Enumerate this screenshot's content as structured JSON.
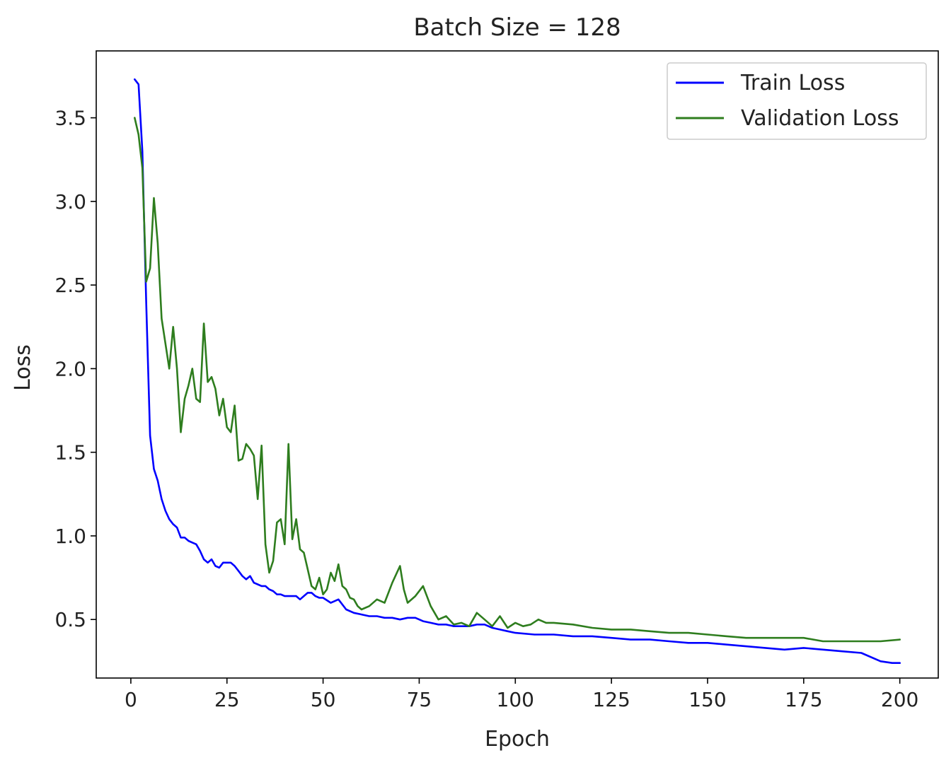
{
  "chart_data": {
    "type": "line",
    "title": "Batch Size = 128",
    "xlabel": "Epoch",
    "ylabel": "Loss",
    "xlim": [
      -9,
      210
    ],
    "ylim": [
      0.15,
      3.9
    ],
    "xticks": [
      0,
      25,
      50,
      75,
      100,
      125,
      150,
      175,
      200
    ],
    "yticks": [
      0.5,
      1.0,
      1.5,
      2.0,
      2.5,
      3.0,
      3.5
    ],
    "grid": false,
    "legend_position": "upper right",
    "series": [
      {
        "name": "Train Loss",
        "color": "#0000ff",
        "x": [
          1,
          2,
          3,
          4,
          5,
          6,
          7,
          8,
          9,
          10,
          11,
          12,
          13,
          14,
          15,
          16,
          17,
          18,
          19,
          20,
          21,
          22,
          23,
          24,
          25,
          26,
          27,
          28,
          29,
          30,
          31,
          32,
          33,
          34,
          35,
          36,
          37,
          38,
          39,
          40,
          41,
          42,
          43,
          44,
          45,
          46,
          47,
          48,
          49,
          50,
          52,
          54,
          56,
          58,
          60,
          62,
          64,
          66,
          68,
          70,
          72,
          74,
          76,
          78,
          80,
          82,
          84,
          86,
          88,
          90,
          92,
          94,
          96,
          98,
          100,
          105,
          110,
          115,
          120,
          125,
          130,
          135,
          140,
          145,
          150,
          155,
          160,
          165,
          170,
          175,
          180,
          185,
          190,
          195,
          198,
          200
        ],
        "y": [
          3.73,
          3.7,
          3.3,
          2.4,
          1.6,
          1.4,
          1.33,
          1.22,
          1.15,
          1.1,
          1.07,
          1.05,
          0.99,
          0.99,
          0.97,
          0.96,
          0.95,
          0.91,
          0.86,
          0.84,
          0.86,
          0.82,
          0.81,
          0.84,
          0.84,
          0.84,
          0.82,
          0.79,
          0.76,
          0.74,
          0.76,
          0.72,
          0.71,
          0.7,
          0.7,
          0.68,
          0.67,
          0.65,
          0.65,
          0.64,
          0.64,
          0.64,
          0.64,
          0.62,
          0.64,
          0.66,
          0.66,
          0.64,
          0.63,
          0.63,
          0.6,
          0.62,
          0.56,
          0.54,
          0.53,
          0.52,
          0.52,
          0.51,
          0.51,
          0.5,
          0.51,
          0.51,
          0.49,
          0.48,
          0.47,
          0.47,
          0.46,
          0.46,
          0.46,
          0.47,
          0.47,
          0.45,
          0.44,
          0.43,
          0.42,
          0.41,
          0.41,
          0.4,
          0.4,
          0.39,
          0.38,
          0.38,
          0.37,
          0.36,
          0.36,
          0.35,
          0.34,
          0.33,
          0.32,
          0.33,
          0.32,
          0.31,
          0.3,
          0.25,
          0.24,
          0.24
        ]
      },
      {
        "name": "Validation Loss",
        "color": "#2e7d1e",
        "x": [
          1,
          2,
          3,
          4,
          5,
          6,
          7,
          8,
          9,
          10,
          11,
          12,
          13,
          14,
          15,
          16,
          17,
          18,
          19,
          20,
          21,
          22,
          23,
          24,
          25,
          26,
          27,
          28,
          29,
          30,
          31,
          32,
          33,
          34,
          35,
          36,
          37,
          38,
          39,
          40,
          41,
          42,
          43,
          44,
          45,
          46,
          47,
          48,
          49,
          50,
          51,
          52,
          53,
          54,
          55,
          56,
          57,
          58,
          59,
          60,
          62,
          64,
          66,
          68,
          70,
          71,
          72,
          74,
          76,
          78,
          80,
          82,
          84,
          86,
          88,
          90,
          92,
          94,
          96,
          98,
          100,
          102,
          104,
          106,
          108,
          110,
          115,
          120,
          125,
          130,
          135,
          140,
          145,
          150,
          155,
          160,
          165,
          170,
          175,
          180,
          185,
          190,
          195,
          200
        ],
        "y": [
          3.5,
          3.4,
          3.2,
          2.52,
          2.6,
          3.02,
          2.75,
          2.3,
          2.15,
          2.0,
          2.25,
          2.0,
          1.62,
          1.82,
          1.9,
          2.0,
          1.82,
          1.8,
          2.27,
          1.92,
          1.95,
          1.88,
          1.72,
          1.82,
          1.65,
          1.62,
          1.78,
          1.45,
          1.46,
          1.55,
          1.52,
          1.48,
          1.22,
          1.54,
          0.95,
          0.78,
          0.85,
          1.08,
          1.1,
          0.95,
          1.55,
          0.98,
          1.1,
          0.92,
          0.9,
          0.8,
          0.7,
          0.68,
          0.75,
          0.65,
          0.68,
          0.78,
          0.73,
          0.83,
          0.7,
          0.68,
          0.63,
          0.62,
          0.58,
          0.56,
          0.58,
          0.62,
          0.6,
          0.72,
          0.82,
          0.68,
          0.6,
          0.64,
          0.7,
          0.58,
          0.5,
          0.52,
          0.47,
          0.48,
          0.46,
          0.54,
          0.5,
          0.46,
          0.52,
          0.45,
          0.48,
          0.46,
          0.47,
          0.5,
          0.48,
          0.48,
          0.47,
          0.45,
          0.44,
          0.44,
          0.43,
          0.42,
          0.42,
          0.41,
          0.4,
          0.39,
          0.39,
          0.39,
          0.39,
          0.37,
          0.37,
          0.37,
          0.37,
          0.38
        ]
      }
    ]
  }
}
